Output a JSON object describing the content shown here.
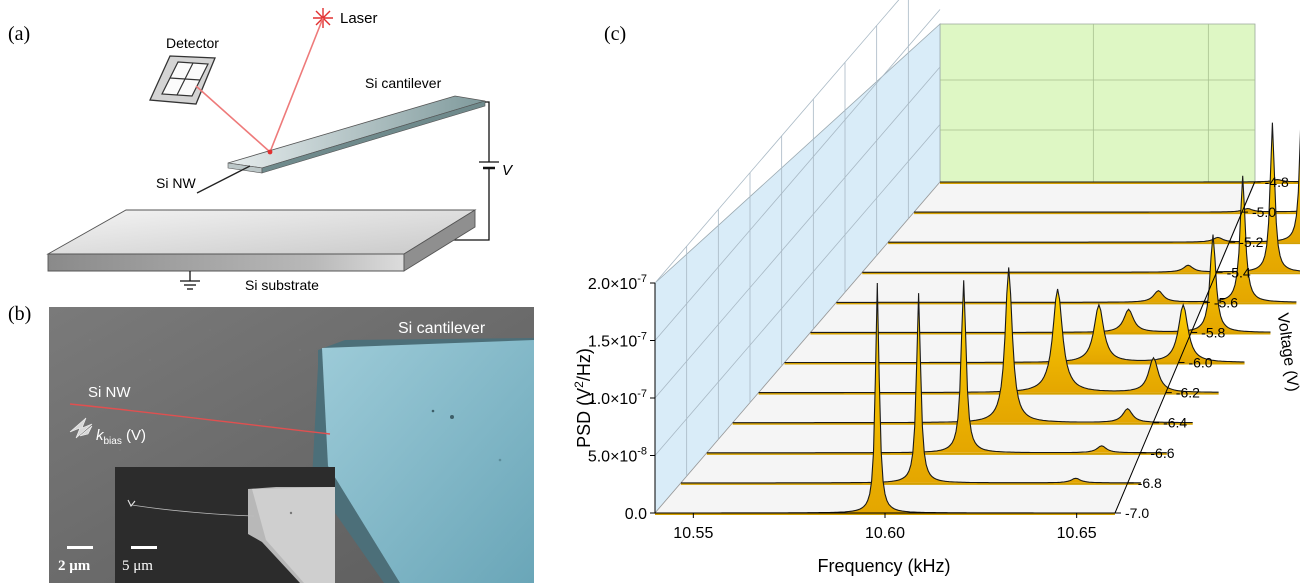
{
  "panel_a": {
    "label": "(a)",
    "laser": "Laser",
    "detector": "Detector",
    "cantilever": "Si cantilever",
    "nanowire": "Si NW",
    "voltage": "V",
    "substrate": "Si substrate"
  },
  "panel_b": {
    "label": "(b)",
    "cantilever": "Si cantilever",
    "nanowire": "Si NW",
    "k_symbol": "k",
    "k_subscript": "bias",
    "k_suffix": " (V)",
    "scale_main": "2 μm",
    "scale_inset": "5 μm",
    "colors": {
      "cantilever": "#7fb8c8",
      "nanowire": "#e05050",
      "background": "#6a6a6a"
    }
  },
  "panel_c": {
    "label": "(c)"
  },
  "chart_data": {
    "type": "area",
    "xlabel": "Frequency (kHz)",
    "ylabel_main": "PSD (V",
    "ylabel_sup": "2",
    "ylabel_tail": "/Hz)",
    "zlabel": "Voltage (V)",
    "xlim": [
      10.54,
      10.66
    ],
    "ylim": [
      0,
      2e-07
    ],
    "x_ticks": [
      "10.55",
      "10.60",
      "10.65"
    ],
    "x_tick_values": [
      10.55,
      10.6,
      10.65
    ],
    "y_ticks": [
      {
        "mant": "0.0",
        "exp": ""
      },
      {
        "mant": "5.0×10",
        "exp": "-8"
      },
      {
        "mant": "1.0×10",
        "exp": "-7"
      },
      {
        "mant": "1.5×10",
        "exp": "-7"
      },
      {
        "mant": "2.0×10",
        "exp": "-7"
      }
    ],
    "y_tick_values": [
      0,
      5e-08,
      1e-07,
      1.5e-07,
      2e-07
    ],
    "series": [
      {
        "voltage": "-7.0",
        "peaks": [
          [
            10.598,
            2e-07,
            0.0012
          ]
        ]
      },
      {
        "voltage": "-6.8",
        "peaks": [
          [
            10.602,
            1.65e-07,
            0.0013
          ],
          [
            10.643,
            4e-09,
            0.003
          ]
        ]
      },
      {
        "voltage": "-6.6",
        "peaks": [
          [
            10.607,
            1.5e-07,
            0.0015
          ],
          [
            10.643,
            6e-09,
            0.003
          ]
        ]
      },
      {
        "voltage": "-6.4",
        "peaks": [
          [
            10.612,
            1.35e-07,
            0.0022
          ],
          [
            10.643,
            1.2e-08,
            0.003
          ]
        ]
      },
      {
        "voltage": "-6.2",
        "peaks": [
          [
            10.618,
            9e-08,
            0.003
          ],
          [
            10.643,
            3e-08,
            0.003
          ]
        ]
      },
      {
        "voltage": "-6.0",
        "peaks": [
          [
            10.622,
            5e-08,
            0.003
          ],
          [
            10.644,
            5e-08,
            0.003
          ]
        ]
      },
      {
        "voltage": "-5.8",
        "peaks": [
          [
            10.623,
            2e-08,
            0.003
          ],
          [
            10.645,
            8.5e-08,
            0.0018
          ]
        ]
      },
      {
        "voltage": "-5.6",
        "peaks": [
          [
            10.624,
            1e-08,
            0.003
          ],
          [
            10.646,
            1.1e-07,
            0.0016
          ]
        ]
      },
      {
        "voltage": "-5.4",
        "peaks": [
          [
            10.625,
            6e-09,
            0.003
          ],
          [
            10.647,
            1.3e-07,
            0.0014
          ]
        ]
      },
      {
        "voltage": "-5.2",
        "peaks": [
          [
            10.626,
            4e-09,
            0.003
          ],
          [
            10.648,
            1.45e-07,
            0.0013
          ]
        ]
      },
      {
        "voltage": "-5.0",
        "peaks": [
          [
            10.627,
            3e-09,
            0.003
          ],
          [
            10.649,
            1.6e-07,
            0.0012
          ]
        ]
      },
      {
        "voltage": "-4.8",
        "peaks": [
          [
            10.628,
            2e-09,
            0.003
          ],
          [
            10.65,
            1.75e-07,
            0.0011
          ]
        ]
      }
    ]
  }
}
